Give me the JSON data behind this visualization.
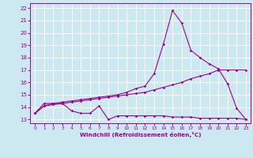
{
  "xlabel": "Windchill (Refroidissement éolien,°C)",
  "bg_color": "#cce8f0",
  "line_color": "#990099",
  "grid_color": "#ffffff",
  "xlim": [
    -0.5,
    23.5
  ],
  "ylim": [
    12.7,
    22.4
  ],
  "xticks": [
    0,
    1,
    2,
    3,
    4,
    5,
    6,
    7,
    8,
    9,
    10,
    11,
    12,
    13,
    14,
    15,
    16,
    17,
    18,
    19,
    20,
    21,
    22,
    23
  ],
  "yticks": [
    13,
    14,
    15,
    16,
    17,
    18,
    19,
    20,
    21,
    22
  ],
  "series1_x": [
    0,
    1,
    2,
    3,
    4,
    5,
    6,
    7,
    8,
    9,
    10,
    11,
    12,
    13,
    14,
    15,
    16,
    17,
    18,
    19,
    20,
    21,
    22,
    23
  ],
  "series1_y": [
    13.5,
    14.3,
    14.3,
    14.3,
    13.7,
    13.5,
    13.5,
    14.1,
    13.0,
    13.3,
    13.3,
    13.3,
    13.3,
    13.3,
    13.3,
    13.2,
    13.2,
    13.2,
    13.1,
    13.1,
    13.1,
    13.1,
    13.1,
    13.0
  ],
  "series2_x": [
    0,
    1,
    2,
    3,
    4,
    5,
    6,
    7,
    8,
    9,
    10,
    11,
    12,
    13,
    14,
    15,
    16,
    17,
    18,
    19,
    20,
    21,
    22,
    23
  ],
  "series2_y": [
    13.5,
    14.1,
    14.2,
    14.3,
    14.4,
    14.5,
    14.6,
    14.7,
    14.8,
    14.9,
    15.0,
    15.1,
    15.2,
    15.4,
    15.6,
    15.8,
    16.0,
    16.3,
    16.5,
    16.7,
    17.0,
    17.0,
    17.0,
    17.0
  ],
  "series3_x": [
    0,
    1,
    2,
    3,
    4,
    5,
    6,
    7,
    8,
    9,
    10,
    11,
    12,
    13,
    14,
    15,
    16,
    17,
    18,
    19,
    20,
    21,
    22,
    23
  ],
  "series3_y": [
    13.5,
    14.1,
    14.3,
    14.4,
    14.5,
    14.6,
    14.7,
    14.8,
    14.9,
    15.0,
    15.2,
    15.5,
    15.7,
    16.7,
    19.1,
    21.8,
    20.8,
    18.6,
    18.0,
    17.5,
    17.1,
    15.9,
    13.9,
    13.0
  ]
}
